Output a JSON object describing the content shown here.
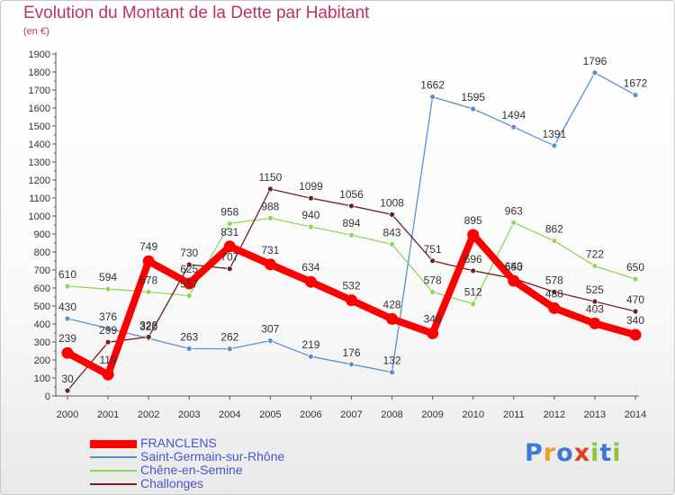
{
  "header": {
    "title": "Evolution du Montant de la Dette par Habitant",
    "unit": "(en €)"
  },
  "logo": {
    "text": "Proxiti",
    "letters": [
      "P",
      "r",
      "o",
      "x",
      "i",
      "t",
      "i"
    ]
  },
  "chart_data": {
    "type": "line",
    "title": "Evolution du Montant de la Dette par Habitant",
    "ylabel": "(en €)",
    "xlabel": "",
    "x": [
      "2000",
      "2001",
      "2002",
      "2003",
      "2004",
      "2005",
      "2006",
      "2007",
      "2008",
      "2009",
      "2010",
      "2011",
      "2012",
      "2013",
      "2014"
    ],
    "ylim": [
      0,
      1900
    ],
    "yticks": [
      0,
      100,
      200,
      300,
      400,
      500,
      600,
      700,
      800,
      900,
      1000,
      1100,
      1200,
      1300,
      1400,
      1500,
      1600,
      1700,
      1800,
      1900
    ],
    "grid": false,
    "legend_position": "bottom-left",
    "series": [
      {
        "name": "Saint-Germain-sur-Rhône",
        "color": "#5b8fd0",
        "width": 1.3,
        "labels": "above",
        "values": [
          430,
          376,
          320,
          263,
          262,
          307,
          219,
          176,
          132,
          1662,
          1595,
          1494,
          1391,
          1796,
          1672
        ]
      },
      {
        "name": "Chêne-en-Semine",
        "color": "#8fd65a",
        "width": 1.3,
        "labels": "above",
        "values": [
          610,
          594,
          578,
          557,
          958,
          988,
          940,
          894,
          843,
          578,
          512,
          963,
          862,
          722,
          650
        ]
      },
      {
        "name": "Challonges",
        "color": "#6b2222",
        "width": 1.3,
        "labels": "above",
        "values": [
          30,
          299,
          328,
          730,
          707,
          1150,
          1099,
          1056,
          1008,
          751,
          696,
          653,
          578,
          525,
          470
        ]
      },
      {
        "name": "FRANCLENS",
        "color": "#ff0000",
        "width": 8,
        "labels": "above",
        "values": [
          239,
          119,
          749,
          625,
          831,
          731,
          634,
          532,
          428,
          348,
          895,
          640,
          488,
          403,
          340
        ]
      }
    ]
  }
}
